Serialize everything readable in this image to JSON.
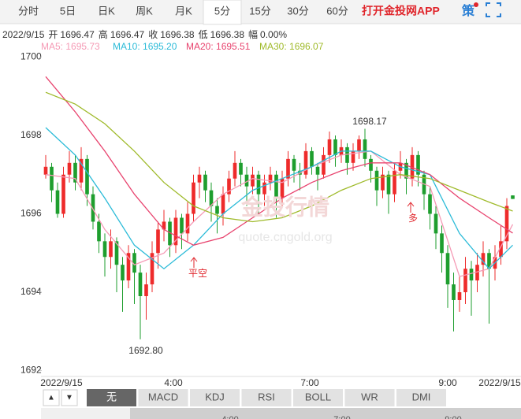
{
  "tabs": [
    "分时",
    "5日",
    "日K",
    "周K",
    "月K",
    "5分",
    "15分",
    "30分",
    "60分"
  ],
  "app_link": "打开金投网APP",
  "strategy_icon": "策",
  "quote": {
    "date": "2022/9/15",
    "items": [
      {
        "label": "开",
        "value": 1696.47
      },
      {
        "label": "高",
        "value": 1696.47
      },
      {
        "label": "收",
        "value": 1696.38
      },
      {
        "label": "低",
        "value": 1696.38
      },
      {
        "label": "幅",
        "value": "0.00%"
      }
    ]
  },
  "watermark": [
    "金投行情",
    "quote.cngold.org"
  ],
  "indicator_tabs": [
    "无",
    "MACD",
    "KDJ",
    "RSI",
    "BOLL",
    "WR",
    "DMI"
  ],
  "nav_buttons": [
    "▲",
    "▼"
  ],
  "nav_labels": [
    "4:00",
    "7:00",
    "9:00"
  ],
  "chart_data": {
    "type": "candlestick",
    "up_color": "#ee2b2b",
    "down_color": "#1e9e2e",
    "ylim": [
      1691.85,
      1700.15
    ],
    "yticks": [
      1692,
      1694,
      1696,
      1698,
      1700
    ],
    "xlim": [
      -0.8,
      80.4
    ],
    "time_labels": [
      "2022/9/15",
      "4:00",
      "7:00",
      "9:00",
      "2022/9/15"
    ],
    "annotations": [
      "1698.17",
      "1692.80",
      "平空",
      "多"
    ],
    "candles": [
      [
        1697.0,
        1697.5,
        1696.9,
        1697.2
      ],
      [
        1697.2,
        1697.3,
        1696.3,
        1696.6
      ],
      [
        1696.6,
        1696.8,
        1695.9,
        1696.0
      ],
      [
        1696.0,
        1697.2,
        1695.9,
        1697.0
      ],
      [
        1697.0,
        1697.6,
        1696.8,
        1697.3
      ],
      [
        1697.3,
        1697.5,
        1696.6,
        1696.8
      ],
      [
        1696.8,
        1697.7,
        1696.6,
        1697.4
      ],
      [
        1697.4,
        1697.5,
        1696.2,
        1696.5
      ],
      [
        1696.5,
        1696.7,
        1695.6,
        1695.8
      ],
      [
        1695.8,
        1696.0,
        1695.0,
        1695.3
      ],
      [
        1695.3,
        1695.5,
        1694.4,
        1694.9
      ],
      [
        1694.9,
        1695.6,
        1694.6,
        1695.3
      ],
      [
        1695.3,
        1695.4,
        1694.0,
        1694.7
      ],
      [
        1694.7,
        1694.9,
        1693.5,
        1694.3
      ],
      [
        1694.3,
        1695.2,
        1694.1,
        1695.0
      ],
      [
        1695.0,
        1695.1,
        1693.7,
        1694.5
      ],
      [
        1694.5,
        1694.7,
        1692.8,
        1693.9
      ],
      [
        1693.9,
        1694.5,
        1693.3,
        1694.2
      ],
      [
        1694.2,
        1695.3,
        1694.0,
        1695.0
      ],
      [
        1695.0,
        1695.8,
        1694.6,
        1695.6
      ],
      [
        1695.6,
        1696.1,
        1695.3,
        1695.8
      ],
      [
        1695.8,
        1695.9,
        1694.9,
        1695.2
      ],
      [
        1695.2,
        1696.1,
        1695.0,
        1695.9
      ],
      [
        1695.9,
        1696.0,
        1695.1,
        1695.5
      ],
      [
        1695.5,
        1696.3,
        1695.3,
        1696.0
      ],
      [
        1696.0,
        1697.0,
        1695.8,
        1696.8
      ],
      [
        1696.8,
        1697.2,
        1696.4,
        1697.0
      ],
      [
        1697.0,
        1697.1,
        1696.3,
        1696.6
      ],
      [
        1696.6,
        1696.8,
        1695.8,
        1696.2
      ],
      [
        1696.2,
        1696.4,
        1695.5,
        1696.0
      ],
      [
        1696.0,
        1696.7,
        1695.7,
        1696.5
      ],
      [
        1696.5,
        1697.1,
        1696.3,
        1696.9
      ],
      [
        1696.9,
        1697.6,
        1696.7,
        1697.3
      ],
      [
        1697.3,
        1697.4,
        1696.7,
        1697.0
      ],
      [
        1697.0,
        1697.2,
        1696.2,
        1696.7
      ],
      [
        1696.7,
        1697.2,
        1696.5,
        1697.0
      ],
      [
        1697.0,
        1697.1,
        1696.0,
        1696.5
      ],
      [
        1696.5,
        1697.0,
        1696.2,
        1696.8
      ],
      [
        1696.8,
        1697.2,
        1696.6,
        1697.0
      ],
      [
        1697.0,
        1697.1,
        1695.9,
        1696.4
      ],
      [
        1696.4,
        1697.1,
        1696.2,
        1696.9
      ],
      [
        1696.9,
        1697.6,
        1696.7,
        1697.4
      ],
      [
        1697.4,
        1697.5,
        1696.8,
        1697.1
      ],
      [
        1697.1,
        1697.3,
        1696.6,
        1697.0
      ],
      [
        1697.0,
        1697.8,
        1696.9,
        1697.6
      ],
      [
        1697.6,
        1697.7,
        1697.0,
        1697.2
      ],
      [
        1697.2,
        1697.3,
        1696.6,
        1697.0
      ],
      [
        1697.0,
        1697.7,
        1696.9,
        1697.5
      ],
      [
        1697.5,
        1698.1,
        1697.3,
        1697.9
      ],
      [
        1697.9,
        1698.0,
        1697.2,
        1697.5
      ],
      [
        1697.5,
        1697.9,
        1697.3,
        1697.7
      ],
      [
        1697.7,
        1697.8,
        1697.0,
        1697.3
      ],
      [
        1697.3,
        1697.8,
        1697.1,
        1697.6
      ],
      [
        1697.6,
        1698.0,
        1697.4,
        1697.9
      ],
      [
        1697.9,
        1698.17,
        1697.2,
        1697.4
      ],
      [
        1697.4,
        1697.5,
        1696.8,
        1697.1
      ],
      [
        1697.1,
        1697.2,
        1696.2,
        1696.6
      ],
      [
        1696.6,
        1697.2,
        1696.4,
        1697.0
      ],
      [
        1697.0,
        1697.1,
        1696.0,
        1696.5
      ],
      [
        1696.5,
        1697.3,
        1696.3,
        1697.1
      ],
      [
        1697.1,
        1697.6,
        1696.9,
        1697.3
      ],
      [
        1697.3,
        1697.4,
        1696.5,
        1696.9
      ],
      [
        1696.9,
        1697.7,
        1696.7,
        1697.5
      ],
      [
        1697.5,
        1697.6,
        1696.7,
        1697.0
      ],
      [
        1697.0,
        1697.1,
        1696.1,
        1696.5
      ],
      [
        1696.5,
        1696.7,
        1695.6,
        1696.0
      ],
      [
        1696.0,
        1696.2,
        1695.1,
        1695.5
      ],
      [
        1695.5,
        1695.7,
        1694.5,
        1695.0
      ],
      [
        1695.0,
        1695.2,
        1693.6,
        1694.2
      ],
      [
        1694.2,
        1694.5,
        1693.0,
        1693.8
      ],
      [
        1693.8,
        1694.4,
        1693.5,
        1694.0
      ],
      [
        1694.0,
        1694.9,
        1693.7,
        1694.6
      ],
      [
        1694.6,
        1694.8,
        1693.4,
        1694.3
      ],
      [
        1694.3,
        1695.0,
        1694.0,
        1694.7
      ],
      [
        1694.7,
        1695.3,
        1694.4,
        1695.0
      ],
      [
        1695.0,
        1695.1,
        1693.2,
        1694.6
      ],
      [
        1694.6,
        1695.2,
        1694.3,
        1694.9
      ],
      [
        1694.9,
        1695.7,
        1694.7,
        1695.3
      ],
      [
        1695.3,
        1696.4,
        1695.1,
        1696.2
      ],
      [
        1696.47,
        1696.47,
        1696.38,
        1696.38
      ]
    ],
    "ma_x": [
      0,
      5,
      10,
      15,
      20,
      25,
      30,
      35,
      40,
      45,
      50,
      55,
      60,
      65,
      70,
      75,
      79
    ],
    "series": [
      {
        "name": "MA5: 1695.73",
        "color": "#f59ab5",
        "values": [
          1697.0,
          1696.9,
          1695.6,
          1694.7,
          1695.0,
          1695.8,
          1696.5,
          1696.9,
          1696.8,
          1697.2,
          1697.5,
          1697.6,
          1697.0,
          1696.7,
          1694.4,
          1694.6,
          1695.73
        ]
      },
      {
        "name": "MA10: 1695.20",
        "color": "#2bbbd8",
        "values": [
          1698.2,
          1697.5,
          1696.4,
          1695.2,
          1694.6,
          1695.2,
          1696.0,
          1696.6,
          1696.9,
          1697.2,
          1697.6,
          1697.6,
          1697.2,
          1697.0,
          1695.5,
          1694.6,
          1695.2
        ]
      },
      {
        "name": "MA20: 1695.51",
        "color": "#e8436e",
        "values": [
          1699.5,
          1698.6,
          1697.6,
          1696.5,
          1695.6,
          1695.2,
          1695.4,
          1695.9,
          1696.4,
          1696.8,
          1697.1,
          1697.3,
          1697.3,
          1697.0,
          1696.4,
          1695.9,
          1695.51
        ]
      },
      {
        "name": "MA30: 1696.07",
        "color": "#9fba2a",
        "values": [
          1699.1,
          1698.8,
          1698.3,
          1697.6,
          1696.8,
          1696.2,
          1695.9,
          1695.8,
          1695.9,
          1696.2,
          1696.6,
          1696.9,
          1697.0,
          1696.9,
          1696.6,
          1696.3,
          1696.07
        ]
      }
    ]
  }
}
